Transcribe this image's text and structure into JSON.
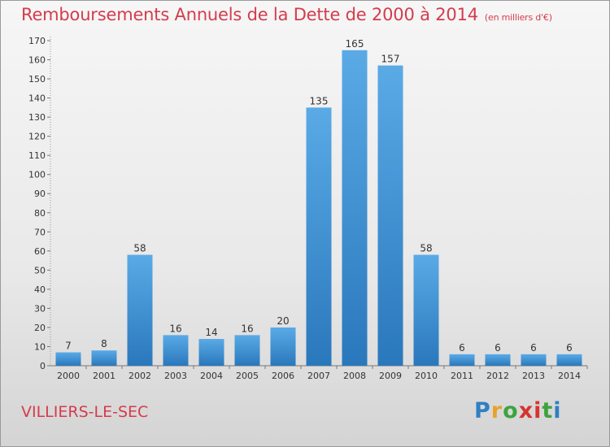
{
  "title": "Remboursements Annuels de la Dette de 2000 à 2014",
  "unit": "(en milliers d'€)",
  "place": "VILLIERS-LE-SEC",
  "logo": {
    "letters": [
      "P",
      "r",
      "o",
      "x",
      "i",
      "t",
      "i"
    ],
    "colors": [
      "#2f7fc2",
      "#e8a22c",
      "#3fa33f",
      "#d6342f",
      "#d6342f",
      "#3fa33f",
      "#2f7fc2"
    ]
  },
  "colors": {
    "title": "#d43c4c",
    "bar_top": "#5aaae6",
    "bar_bottom": "#2a78bc"
  },
  "chart_data": {
    "type": "bar",
    "title": "Remboursements Annuels de la Dette de 2000 à 2014",
    "categories": [
      "2000",
      "2001",
      "2002",
      "2003",
      "2004",
      "2005",
      "2006",
      "2007",
      "2008",
      "2009",
      "2010",
      "2011",
      "2012",
      "2013",
      "2014"
    ],
    "values": [
      7,
      8,
      58,
      16,
      14,
      16,
      20,
      135,
      165,
      157,
      58,
      6,
      6,
      6,
      6
    ],
    "ylim": [
      0,
      170
    ],
    "yticks": [
      0,
      10,
      20,
      30,
      40,
      50,
      60,
      70,
      80,
      90,
      100,
      110,
      120,
      130,
      140,
      150,
      160,
      170
    ],
    "grid": false,
    "xlabel": "",
    "ylabel": ""
  }
}
